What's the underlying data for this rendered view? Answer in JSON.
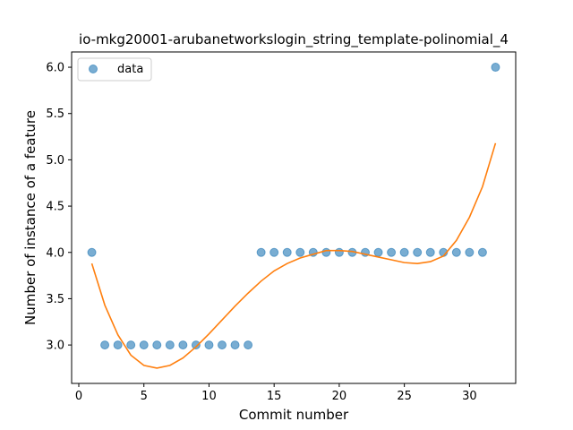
{
  "chart_data": {
    "type": "scatter",
    "title": "io-mkg20001-arubanetworkslogin_string_template-polinomial_4",
    "xlabel": "Commit number",
    "ylabel": "Number of instance of a feature",
    "xlim": [
      -0.55,
      33.55
    ],
    "ylim": [
      2.585,
      6.165
    ],
    "xticks": [
      0,
      5,
      10,
      15,
      20,
      25,
      30
    ],
    "yticks": [
      3.0,
      3.5,
      4.0,
      4.5,
      5.0,
      5.5,
      6.0
    ],
    "legend": {
      "position": "top-left",
      "entries": [
        "data"
      ]
    },
    "grid": false,
    "colors": {
      "data": "#1f77b4",
      "fit": "#ff7f0e"
    },
    "series": [
      {
        "name": "data",
        "kind": "scatter",
        "x": [
          1,
          2,
          3,
          4,
          5,
          6,
          7,
          8,
          9,
          10,
          11,
          12,
          13,
          14,
          15,
          16,
          17,
          18,
          19,
          20,
          21,
          22,
          23,
          24,
          25,
          26,
          27,
          28,
          29,
          30,
          31,
          32
        ],
        "y": [
          4,
          3,
          3,
          3,
          3,
          3,
          3,
          3,
          3,
          3,
          3,
          3,
          3,
          4,
          4,
          4,
          4,
          4,
          4,
          4,
          4,
          4,
          4,
          4,
          4,
          4,
          4,
          4,
          4,
          4,
          4,
          6
        ]
      },
      {
        "kind": "line",
        "x": [
          1,
          2,
          3,
          4,
          5,
          6,
          7,
          8,
          9,
          10,
          11,
          12,
          13,
          14,
          15,
          16,
          17,
          18,
          19,
          20,
          21,
          22,
          23,
          24,
          25,
          26,
          27,
          28,
          29,
          30,
          31,
          32
        ],
        "y": [
          3.88,
          3.43,
          3.11,
          2.89,
          2.78,
          2.75,
          2.78,
          2.86,
          2.98,
          3.12,
          3.27,
          3.42,
          3.56,
          3.69,
          3.8,
          3.88,
          3.94,
          3.98,
          4.02,
          4.02,
          4.01,
          3.98,
          3.95,
          3.92,
          3.89,
          3.88,
          3.9,
          3.96,
          4.13,
          4.38,
          4.71,
          5.18
        ]
      }
    ]
  }
}
